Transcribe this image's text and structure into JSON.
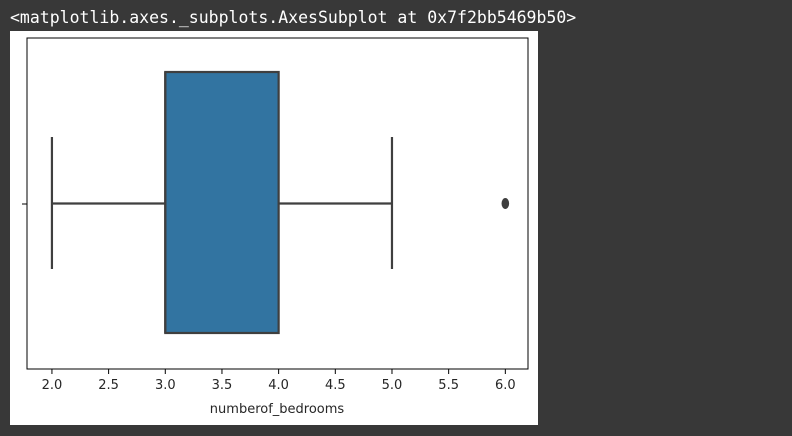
{
  "output": {
    "repr_text": "<matplotlib.axes._subplots.AxesSubplot at 0x7f2bb5469b50>"
  },
  "chart_data": {
    "type": "box",
    "orientation": "horizontal",
    "title": "",
    "xlabel": "numberof_bedrooms",
    "ylabel": "",
    "xlim": [
      1.78,
      6.2
    ],
    "xticks": [
      "2.0",
      "2.5",
      "3.0",
      "3.5",
      "4.0",
      "4.5",
      "5.0",
      "5.5",
      "6.0"
    ],
    "xtick_values": [
      2.0,
      2.5,
      3.0,
      3.5,
      4.0,
      4.5,
      5.0,
      5.5,
      6.0
    ],
    "box": {
      "whisker_low": 2.0,
      "q1": 3.0,
      "median": 3.0,
      "q3": 4.0,
      "whisker_high": 5.0,
      "outliers": [
        6.0
      ]
    },
    "colors": {
      "box_fill": "#3274a1",
      "line": "#3f3f3f",
      "outlier": "#3f3f3f"
    },
    "grid": false
  }
}
